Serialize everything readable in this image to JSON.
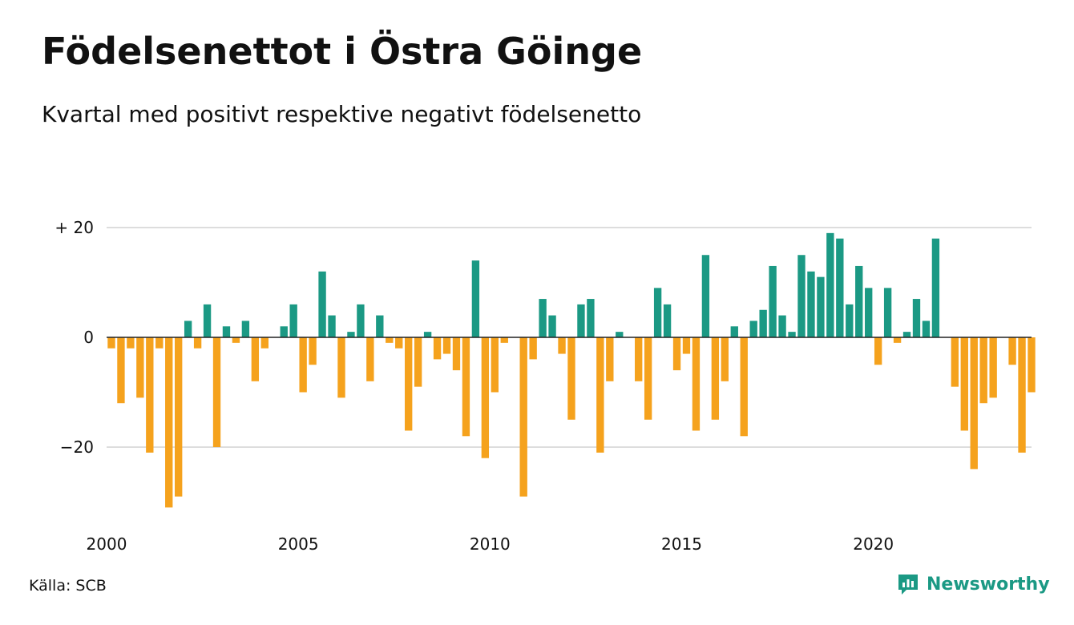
{
  "title": "Födelsenettot i Östra Göinge",
  "subtitle": "Kvartal med positivt respektive negativt födelsenetto",
  "source": "Källa: SCB",
  "brand": {
    "name": "Newsworthy",
    "icon": "newsworthy-logo-icon"
  },
  "colors": {
    "positive": "#1b9984",
    "negative": "#f5a21d",
    "grid": "#dddddd",
    "axis": "#222222"
  },
  "chart_data": {
    "type": "bar",
    "title": "Födelsenettot i Östra Göinge",
    "subtitle": "Kvartal med positivt respektive negativt födelsenetto",
    "xlabel": "",
    "ylabel": "",
    "ylim": [
      -32,
      21
    ],
    "yticks": [
      20,
      0,
      -20
    ],
    "ytick_labels": [
      "+ 20",
      "0",
      "−20"
    ],
    "xticks": [
      2000,
      2005,
      2010,
      2015,
      2020
    ],
    "xtick_labels": [
      "2000",
      "2005",
      "2010",
      "2015",
      "2020"
    ],
    "grid": true,
    "start_year": 2000,
    "periods_per_year": 4,
    "series": [
      {
        "values": [
          -2,
          -12,
          -2,
          -11,
          -21,
          -2,
          -31,
          -29,
          3,
          -2,
          6,
          -20,
          2,
          -1,
          3,
          -8,
          -2,
          0,
          2,
          6,
          -10,
          -5,
          12,
          4,
          -11,
          1,
          6,
          -8,
          4,
          -1,
          -2,
          -17,
          -9,
          1,
          -4,
          -3,
          -6,
          -18,
          14,
          -22,
          -10,
          -1,
          0,
          -29,
          -4,
          7,
          4,
          -3,
          -15,
          6,
          7,
          -21,
          -8,
          1,
          0,
          -8,
          -15,
          9,
          6,
          -6,
          -3,
          -17,
          15,
          -15,
          -8,
          2,
          -18,
          3,
          5,
          13,
          4,
          1,
          15,
          12,
          11,
          19,
          18,
          6,
          13,
          9,
          -5,
          9,
          -1,
          1,
          7,
          3,
          18,
          0,
          -9,
          -17,
          -24,
          -12,
          -11,
          0,
          -5,
          -21,
          -10
        ]
      }
    ]
  }
}
